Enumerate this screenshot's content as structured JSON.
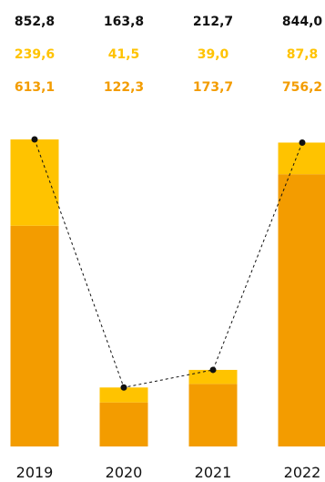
{
  "chart_data": {
    "type": "bar",
    "stacked": true,
    "categories": [
      "2019",
      "2020",
      "2021",
      "2022"
    ],
    "totals": [
      "852,8",
      "163,8",
      "212,7",
      "844,0"
    ],
    "series": [
      {
        "values": [
          613.1,
          122.3,
          173.7,
          756.2
        ],
        "labels": [
          "613,1",
          "122,3",
          "173,7",
          "756,2"
        ],
        "color": "#f39c00"
      },
      {
        "values": [
          239.6,
          41.5,
          39.0,
          87.8
        ],
        "labels": [
          "239,6",
          "41,5",
          "39,0",
          "87,8"
        ],
        "color": "#ffc300"
      }
    ],
    "line": {
      "values": [
        852.8,
        163.8,
        212.7,
        844.0
      ],
      "style": "dashed",
      "marker": "dot",
      "color": "#111111"
    },
    "total_label_color": "#111111",
    "grid": false,
    "legend": "none"
  }
}
